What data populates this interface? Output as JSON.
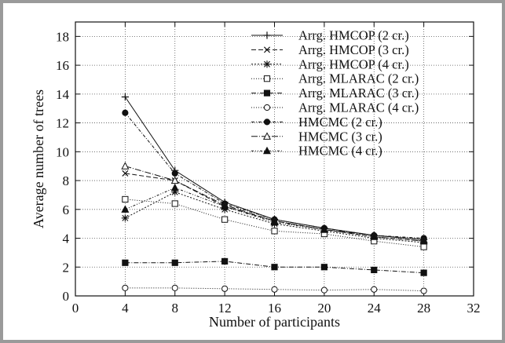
{
  "chart_data": {
    "type": "line",
    "xlabel": "Number of participants",
    "ylabel": "Average number of trees",
    "xlim": [
      0,
      32
    ],
    "ylim": [
      0,
      19
    ],
    "xticks": [
      0,
      4,
      8,
      12,
      16,
      20,
      24,
      28,
      32
    ],
    "yticks": [
      0,
      2,
      4,
      6,
      8,
      10,
      12,
      14,
      16,
      18
    ],
    "grid": true,
    "legend_position": "top-right",
    "x": [
      4,
      8,
      12,
      16,
      20,
      24,
      28
    ],
    "series": [
      {
        "name": "Arrg. HMCOP (2 cr.)",
        "values": [
          13.8,
          8.7,
          6.5,
          5.3,
          4.7,
          4.2,
          3.9
        ],
        "dash": "",
        "marker": "plus"
      },
      {
        "name": "Arrg. HMCOP (3 cr.)",
        "values": [
          8.5,
          8.0,
          6.2,
          5.2,
          4.6,
          4.1,
          3.8
        ],
        "dash": "6,3",
        "marker": "x"
      },
      {
        "name": "Arrg. HMCOP (4 cr.)",
        "values": [
          5.4,
          7.2,
          6.0,
          5.0,
          4.5,
          4.0,
          3.7
        ],
        "dash": "2,2",
        "marker": "star"
      },
      {
        "name": "Arrg. MLARAC (2 cr.)",
        "values": [
          6.7,
          6.4,
          5.3,
          4.5,
          4.3,
          3.8,
          3.4
        ],
        "dash": "1,2",
        "marker": "square-open"
      },
      {
        "name": "Arrg. MLARAC (3 cr.)",
        "values": [
          2.3,
          2.3,
          2.4,
          2.0,
          2.0,
          1.8,
          1.6
        ],
        "dash": "6,2,1,2",
        "marker": "square-filled"
      },
      {
        "name": "Arrg. MLARAC (4 cr.)",
        "values": [
          0.55,
          0.55,
          0.5,
          0.45,
          0.4,
          0.45,
          0.35
        ],
        "dash": "1,2",
        "marker": "circle-open"
      },
      {
        "name": "HMCMC (2 cr.)",
        "values": [
          12.7,
          8.5,
          6.4,
          5.3,
          4.7,
          4.2,
          4.0
        ],
        "dash": "4,2,1,2",
        "marker": "circle-filled"
      },
      {
        "name": "HMCMC (3 cr.)",
        "values": [
          9.0,
          8.0,
          6.3,
          5.2,
          4.6,
          4.2,
          3.9
        ],
        "dash": "8,2,1,2",
        "marker": "triangle-open"
      },
      {
        "name": "HMCMC (4 cr.)",
        "values": [
          6.0,
          7.5,
          6.2,
          5.1,
          4.6,
          4.1,
          3.8
        ],
        "dash": "3,2,1,2,1,2",
        "marker": "triangle-filled"
      }
    ]
  }
}
